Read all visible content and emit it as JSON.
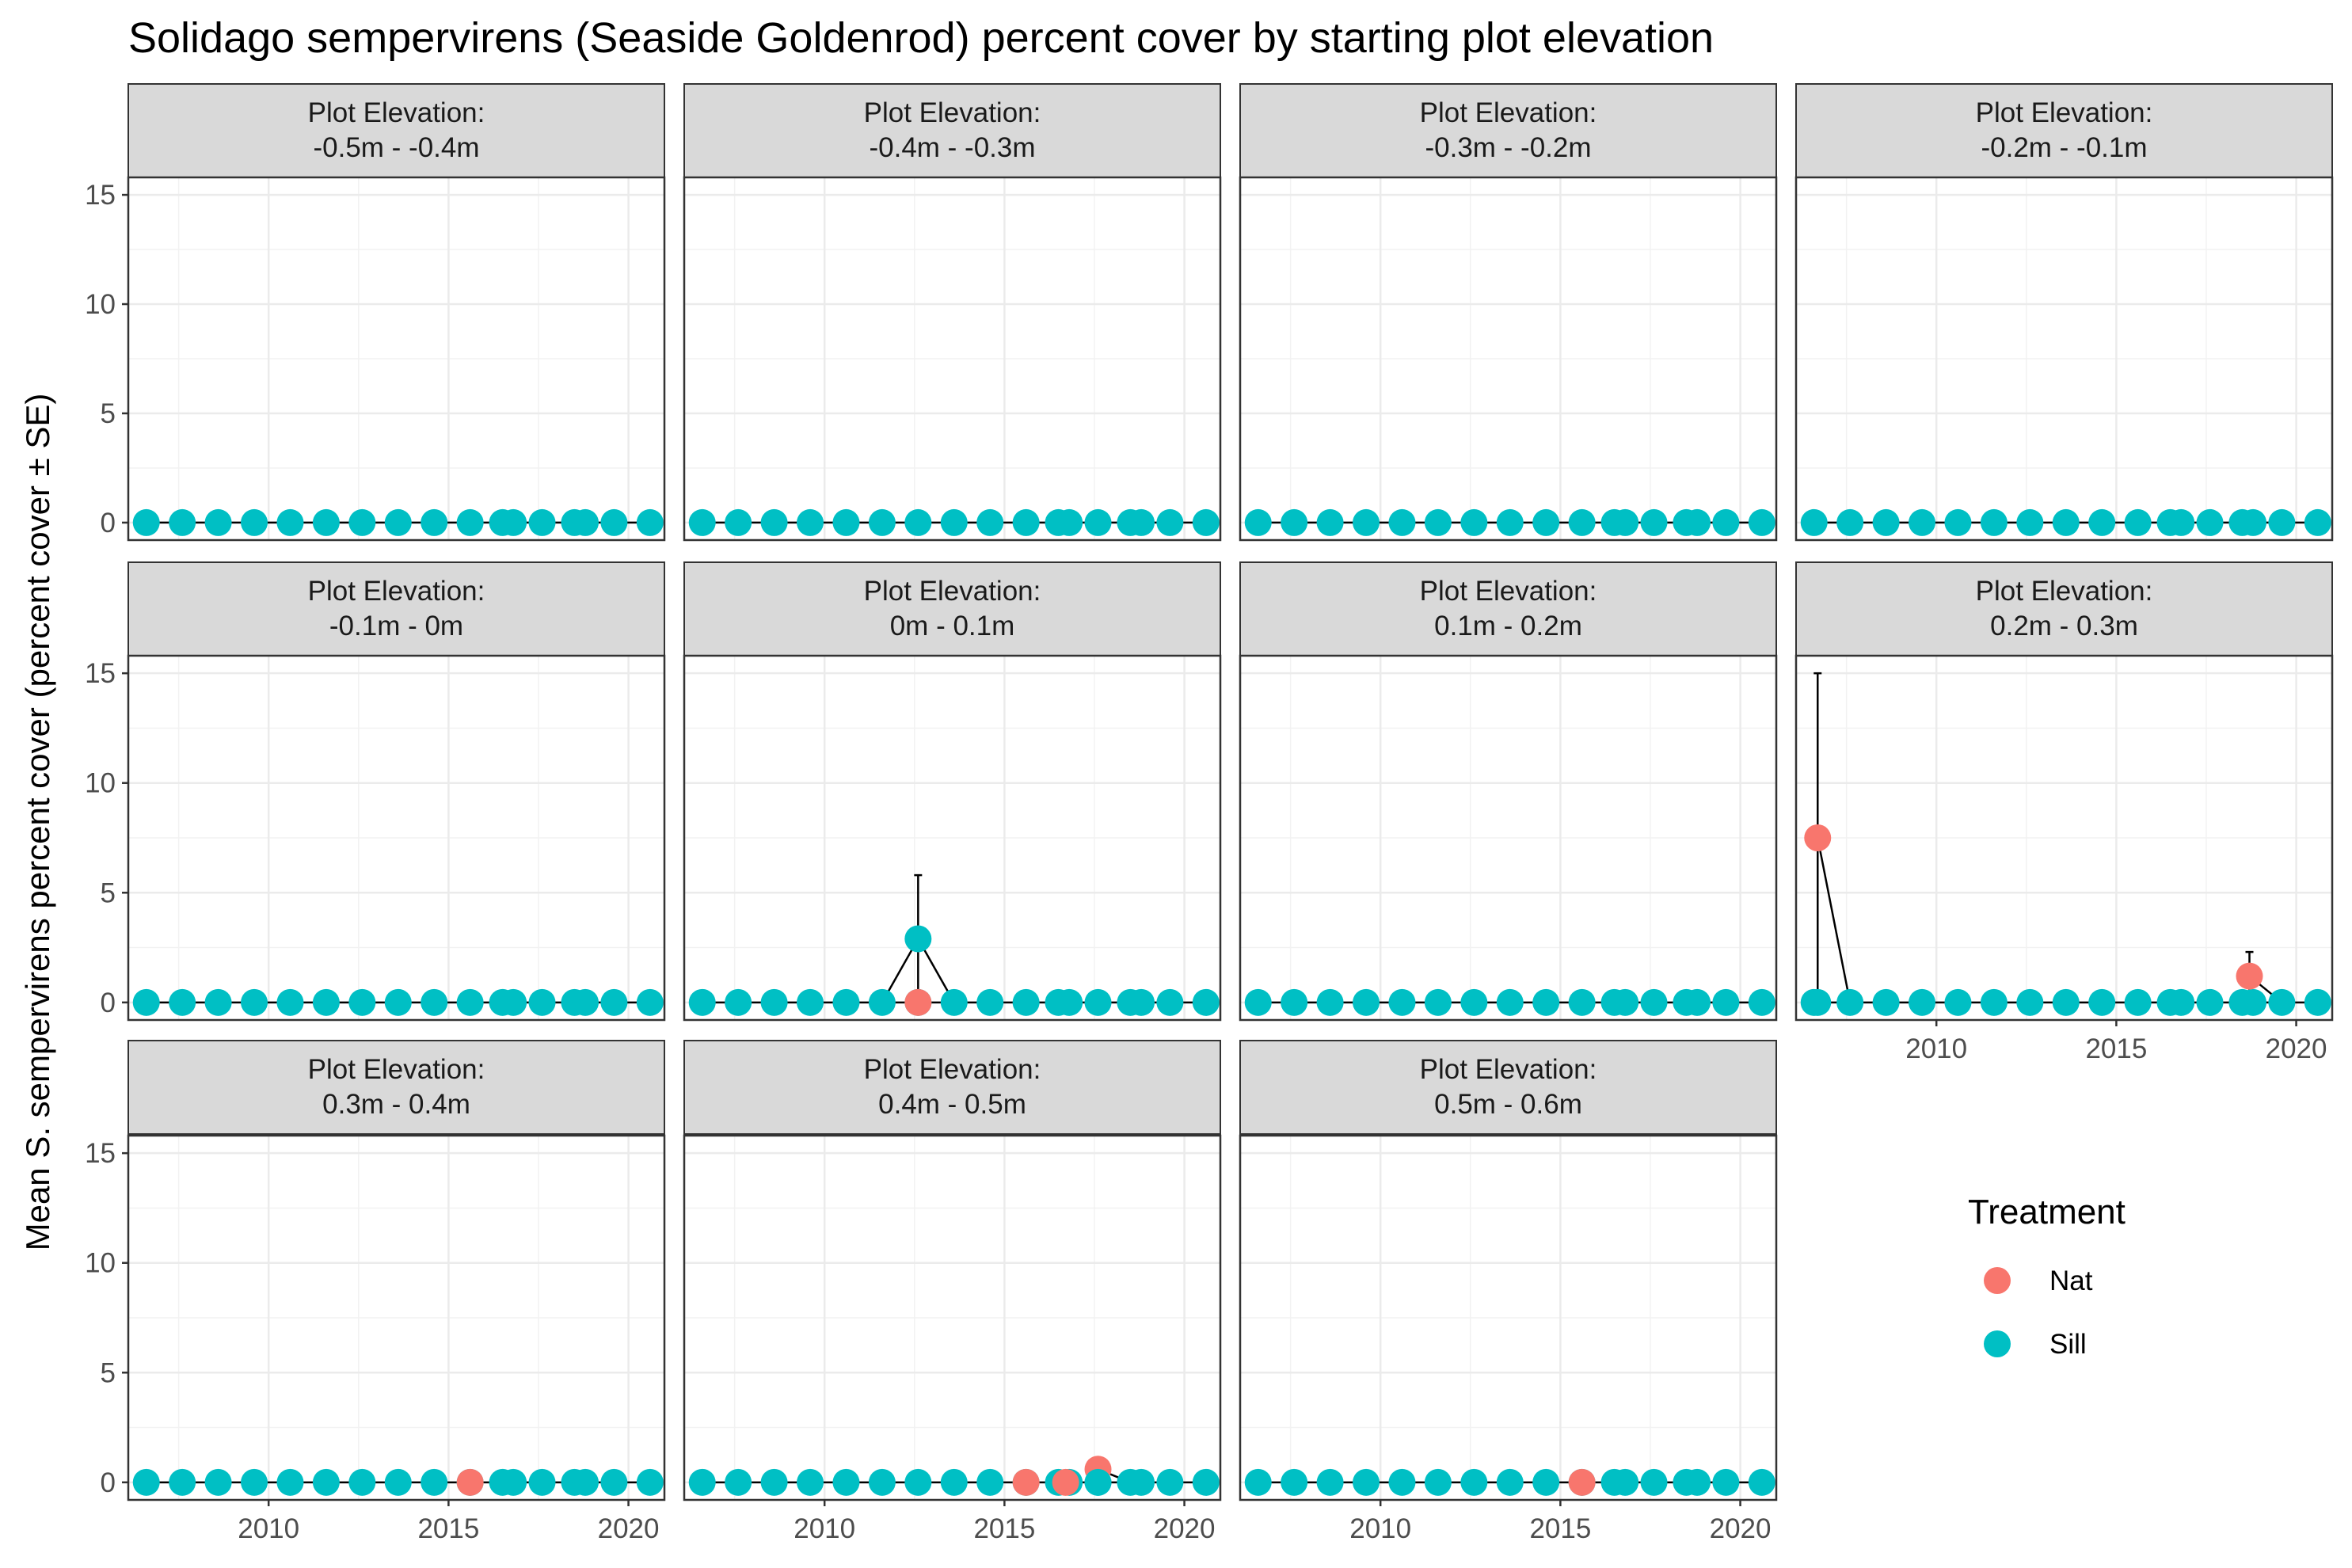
{
  "chart_data": {
    "type": "scatter",
    "title": "Solidago sempervirens (Seaside Goldenrod) percent cover by starting plot elevation",
    "ylabel": "Mean S. sempervirens percent cover (percent cover ± SE)",
    "xlabel": "",
    "xlim": [
      2006.1,
      2021.0
    ],
    "ylim": [
      -0.8,
      15.8
    ],
    "x_ticks": [
      2010,
      2015,
      2020
    ],
    "y_ticks": [
      0,
      5,
      10,
      15
    ],
    "grid": true,
    "strip_prefix": "Plot Elevation:",
    "legend": {
      "title": "Treatment",
      "position": "right",
      "entries": [
        {
          "name": "Nat",
          "color": "#F8766D"
        },
        {
          "name": "Sill",
          "color": "#00BFC4"
        }
      ]
    },
    "panels": [
      {
        "label": "-0.5m - -0.4m",
        "nat": [],
        "sill": [],
        "errorbars": []
      },
      {
        "label": "-0.4m - -0.3m",
        "nat": [],
        "sill": [],
        "errorbars": []
      },
      {
        "label": "-0.3m - -0.2m",
        "nat": [],
        "sill": [],
        "errorbars": []
      },
      {
        "label": "-0.2m - -0.1m",
        "nat": [],
        "sill": [],
        "errorbars": []
      },
      {
        "label": "-0.1m - 0m",
        "nat": [],
        "sill": [],
        "errorbars": []
      },
      {
        "label": "0m - 0.1m",
        "nat": [
          [
            2012.6,
            0
          ]
        ],
        "sill": [
          [
            2012.6,
            2.9
          ]
        ],
        "errorbars": [
          [
            2012.6,
            0,
            5.8
          ]
        ]
      },
      {
        "label": "0.1m - 0.2m",
        "nat": [],
        "sill": [],
        "errorbars": []
      },
      {
        "label": "0.2m - 0.3m",
        "nat": [
          [
            2006.7,
            7.5
          ],
          [
            2018.7,
            1.2
          ]
        ],
        "sill": [
          [
            2006.7,
            0
          ]
        ],
        "errorbars": [
          [
            2006.7,
            0,
            15
          ],
          [
            2018.7,
            0,
            2.3
          ]
        ]
      },
      {
        "label": "0.3m - 0.4m",
        "nat": [
          [
            2015.6,
            0
          ]
        ],
        "sill": [],
        "errorbars": []
      },
      {
        "label": "0.4m - 0.5m",
        "nat": [
          [
            2015.6,
            0
          ],
          [
            2016.7,
            0
          ],
          [
            2017.6,
            0.6
          ]
        ],
        "sill": [
          [
            2017.6,
            0
          ]
        ],
        "errorbars": []
      },
      {
        "label": "0.5m - 0.6m",
        "nat": [
          [
            2015.6,
            0
          ]
        ],
        "sill": [],
        "errorbars": []
      }
    ],
    "series": [
      {
        "name": "Sill",
        "x": [
          2006.6,
          2007.6,
          2008.6,
          2009.6,
          2010.6,
          2011.6,
          2012.6,
          2013.6,
          2014.6,
          2015.6,
          2016.5,
          2016.8,
          2017.6,
          2018.5,
          2018.8,
          2019.6,
          2020.6
        ],
        "y": [
          0,
          0,
          0,
          0,
          0,
          0,
          0,
          0,
          0,
          0,
          0,
          0,
          0,
          0,
          0,
          0,
          0
        ]
      }
    ]
  }
}
